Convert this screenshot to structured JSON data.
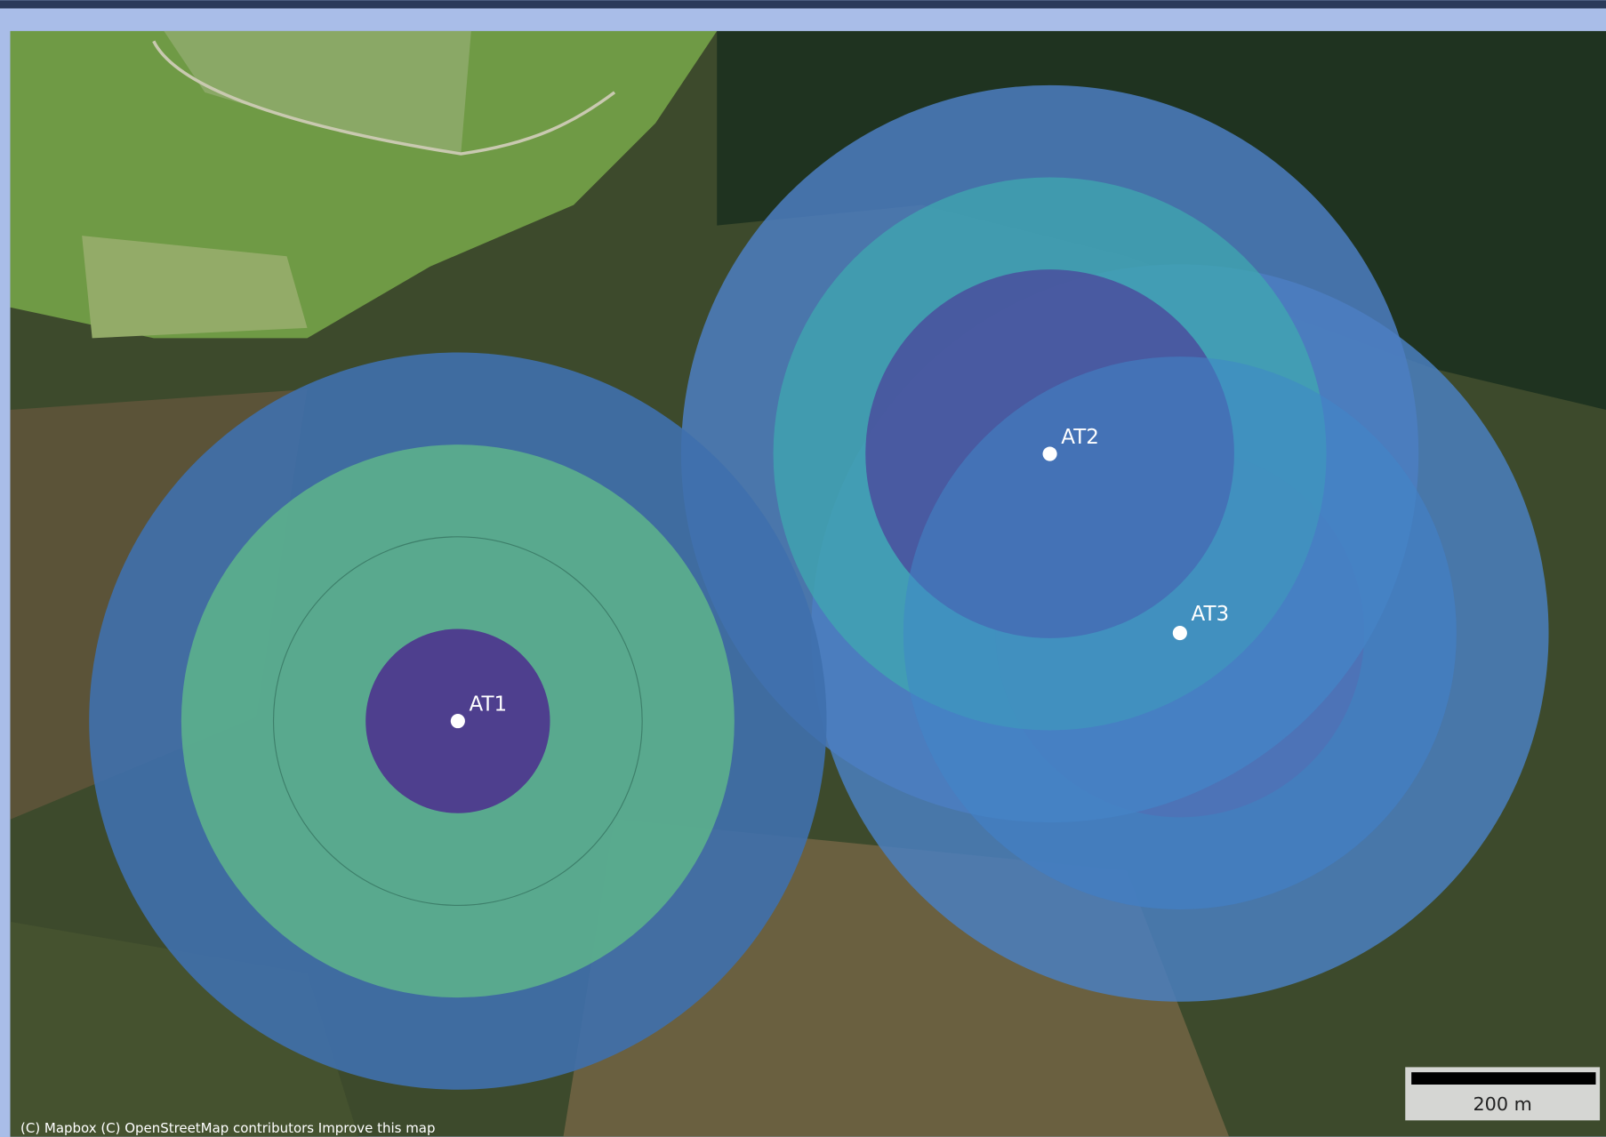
{
  "map": {
    "markers": [
      {
        "label": "AT1"
      },
      {
        "label": "AT2"
      },
      {
        "label": "AT3"
      }
    ],
    "scale_bar": "200 m",
    "attribution": "(C) Mapbox (C) OpenStreetMap contributors Improve this map"
  }
}
